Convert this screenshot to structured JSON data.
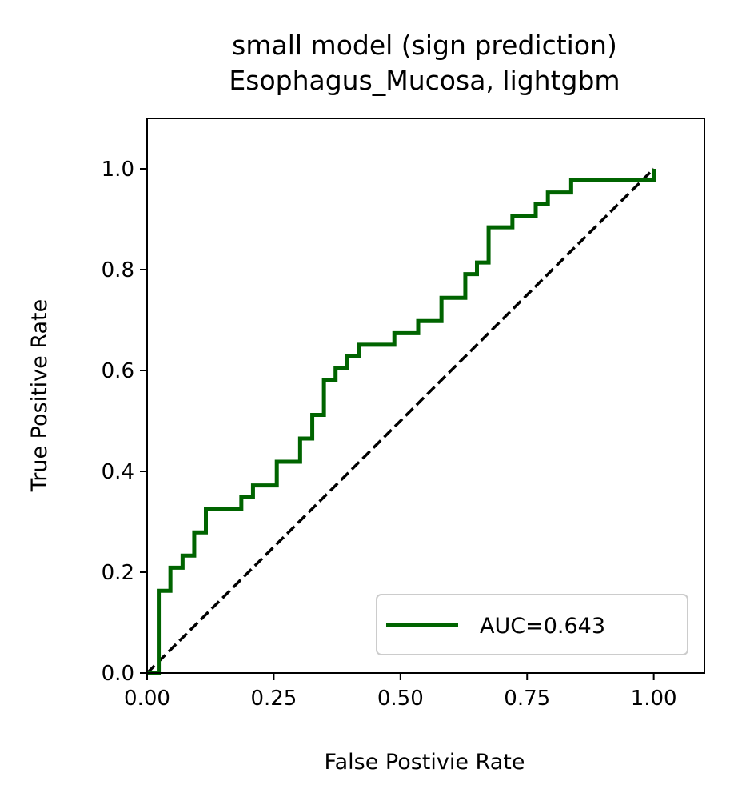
{
  "chart_data": {
    "type": "line",
    "title_line1": "small model (sign prediction)",
    "title_line2": "Esophagus_Mucosa, lightgbm",
    "xlabel": "False Postivie Rate",
    "ylabel": "True Positive Rate",
    "xlim": [
      0.0,
      1.1
    ],
    "ylim": [
      0.0,
      1.1
    ],
    "xticks": [
      0.0,
      0.25,
      0.5,
      0.75,
      1.0
    ],
    "xtick_labels": [
      "0.00",
      "0.25",
      "0.50",
      "0.75",
      "1.00"
    ],
    "yticks": [
      0.0,
      0.2,
      0.4,
      0.6,
      0.8,
      1.0
    ],
    "ytick_labels": [
      "0.0",
      "0.2",
      "0.4",
      "0.6",
      "0.8",
      "1.0"
    ],
    "grid": false,
    "legend_position": "lower-right",
    "series": [
      {
        "name": "AUC=0.643",
        "color": "#006400",
        "style": "solid",
        "x": [
          0.0,
          0.023,
          0.023,
          0.046,
          0.046,
          0.07,
          0.07,
          0.093,
          0.093,
          0.116,
          0.116,
          0.186,
          0.186,
          0.209,
          0.209,
          0.256,
          0.256,
          0.302,
          0.302,
          0.326,
          0.326,
          0.349,
          0.349,
          0.372,
          0.372,
          0.395,
          0.395,
          0.419,
          0.419,
          0.488,
          0.488,
          0.535,
          0.535,
          0.581,
          0.581,
          0.628,
          0.628,
          0.651,
          0.651,
          0.674,
          0.674,
          0.721,
          0.721,
          0.767,
          0.767,
          0.791,
          0.791,
          0.837,
          0.837,
          1.0,
          1.0
        ],
        "y": [
          0.0,
          0.0,
          0.163,
          0.163,
          0.209,
          0.209,
          0.233,
          0.233,
          0.279,
          0.279,
          0.326,
          0.326,
          0.349,
          0.349,
          0.372,
          0.372,
          0.419,
          0.419,
          0.465,
          0.465,
          0.512,
          0.512,
          0.581,
          0.581,
          0.605,
          0.605,
          0.628,
          0.628,
          0.651,
          0.651,
          0.674,
          0.674,
          0.698,
          0.698,
          0.744,
          0.744,
          0.791,
          0.791,
          0.814,
          0.814,
          0.884,
          0.884,
          0.907,
          0.907,
          0.93,
          0.93,
          0.953,
          0.953,
          0.977,
          0.977,
          1.0
        ]
      },
      {
        "color": "#000000",
        "style": "dashed",
        "x": [
          0.0,
          1.0
        ],
        "y": [
          0.0,
          1.0
        ]
      }
    ]
  }
}
